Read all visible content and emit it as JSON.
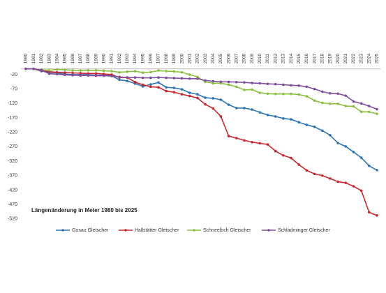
{
  "chart_data": {
    "type": "line",
    "annotation": "Längenänderung in Meter  1980 bis 2025",
    "categories": [
      "1980",
      "1981",
      "1982",
      "1983",
      "1984",
      "1985",
      "1986",
      "1987",
      "1988",
      "1989",
      "1990",
      "1991",
      "1992",
      "1993",
      "1994",
      "1995",
      "1996",
      "1997",
      "1998",
      "1999",
      "2000",
      "2001",
      "2002",
      "2003",
      "2004",
      "2005",
      "2006",
      "2007",
      "2008",
      "2009",
      "2010",
      "2011",
      "2012",
      "2013",
      "2014",
      "2015",
      "2016",
      "2017",
      "2018",
      "2019",
      "2020",
      "2021",
      "2022",
      "2023",
      "2024",
      "2025"
    ],
    "series": [
      {
        "name": "Gosau Gletscher",
        "color": "#2e75b6",
        "values": [
          0,
          0,
          -8,
          -12,
          -14,
          -18,
          -20,
          -20,
          -20,
          -22,
          -22,
          -24,
          -38,
          -42,
          -51,
          -61,
          -54,
          -47,
          -64,
          -66,
          -71,
          -83,
          -88,
          -100,
          -102,
          -107,
          -124,
          -136,
          -136,
          -141,
          -151,
          -160,
          -165,
          -172,
          -175,
          -185,
          -194,
          -201,
          -214,
          -230,
          -257,
          -269,
          -288,
          -308,
          -336,
          -351
        ]
      },
      {
        "name": "Hallstätter Gletscher",
        "color": "#c8282e",
        "values": [
          0,
          0,
          -6,
          -10,
          -12,
          -13,
          -14,
          -15,
          -16,
          -16,
          -18,
          -20,
          -30,
          -30,
          -46,
          -55,
          -62,
          -64,
          -77,
          -81,
          -88,
          -94,
          -101,
          -123,
          -137,
          -165,
          -233,
          -240,
          -248,
          -254,
          -258,
          -262,
          -285,
          -300,
          -309,
          -332,
          -352,
          -364,
          -370,
          -380,
          -391,
          -395,
          -407,
          -422,
          -497,
          -508
        ]
      },
      {
        "name": "Schneeloch Gletscher",
        "color": "#8cbf3f",
        "values": [
          0,
          0,
          -3,
          -5,
          -2,
          -3,
          -5,
          -6,
          -5,
          -5,
          -7,
          -8,
          -12,
          -10,
          -8,
          -13,
          -11,
          -6,
          -8,
          -9,
          -12,
          -20,
          -28,
          -45,
          -50,
          -50,
          -55,
          -62,
          -73,
          -72,
          -83,
          -86,
          -87,
          -87,
          -87,
          -89,
          -95,
          -110,
          -118,
          -121,
          -121,
          -129,
          -130,
          -149,
          -149,
          -156
        ]
      },
      {
        "name": "Schladminger Gletscher",
        "color": "#7f4f9f",
        "values": [
          0,
          0,
          -4,
          -17,
          -18,
          -21,
          -22,
          -23,
          -23,
          -24,
          -24,
          -25,
          -28,
          -30,
          -30,
          -31,
          -31,
          -30,
          -31,
          -32,
          -33,
          -34,
          -34,
          -40,
          -43,
          -45,
          -45,
          -46,
          -47,
          -49,
          -50,
          -52,
          -53,
          -55,
          -57,
          -58,
          -62,
          -70,
          -79,
          -85,
          -86,
          -93,
          -113,
          -120,
          -129,
          -140
        ]
      }
    ],
    "ylim": [
      -535,
      0
    ],
    "yticks": [
      -20,
      -70,
      -120,
      -170,
      -220,
      -270,
      -320,
      -370,
      -420,
      -470,
      -520
    ],
    "grid": false
  }
}
